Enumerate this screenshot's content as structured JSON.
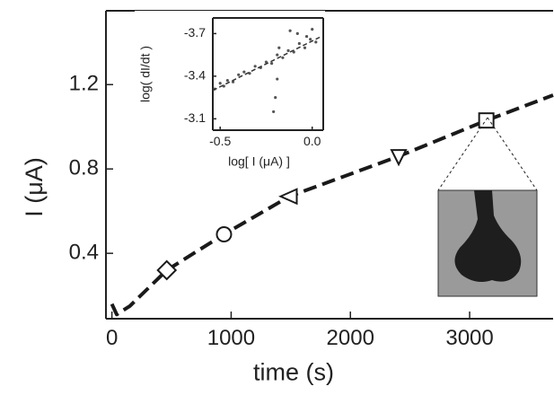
{
  "chart_data": [
    {
      "type": "line",
      "xlabel": "time (s)",
      "ylabel": "I (μA)",
      "xlim": [
        -50,
        3700
      ],
      "ylim": [
        0.09,
        1.55
      ],
      "xticks": [
        0,
        1000,
        2000,
        3000
      ],
      "yticks": [
        0.4,
        0.8,
        1.2
      ],
      "series": [
        {
          "color": "#1a1a1a",
          "line_style": "dashed",
          "x": [
            0,
            40,
            150,
            460,
            940,
            1490,
            2405,
            3140,
            3700
          ],
          "values": [
            0.16,
            0.11,
            0.15,
            0.32,
            0.49,
            0.67,
            0.86,
            1.03,
            1.15
          ]
        },
        {
          "color": "#1a1a1a",
          "markers": [
            "diamond",
            "circle",
            "triangle-left",
            "triangle-down",
            "square"
          ],
          "x": [
            460,
            940,
            1490,
            2405,
            3140
          ],
          "values": [
            0.32,
            0.49,
            0.67,
            0.86,
            1.03
          ]
        }
      ]
    },
    {
      "type": "scatter",
      "xlabel": "log[ I (μA) ]",
      "ylabel": "log( dI/dt )",
      "xlim": [
        -0.54,
        0.06
      ],
      "ylim": [
        -3.02,
        -3.81
      ],
      "xticks": [
        -0.5,
        {
          "value": 0,
          "label": "0.0"
        }
      ],
      "yticks": [
        -3.1,
        -3.4,
        -3.7
      ],
      "series": [
        {
          "color": "#555555",
          "mode": "points",
          "x": [
            -0.53,
            -0.5,
            -0.48,
            -0.46,
            -0.43,
            -0.4,
            -0.37,
            -0.34,
            -0.31,
            -0.28,
            -0.25,
            -0.22,
            -0.19,
            -0.16,
            -0.13,
            -0.1,
            -0.07,
            -0.04,
            -0.01,
            0.02,
            -0.21,
            -0.2,
            -0.19,
            -0.18,
            -0.12,
            -0.08,
            -0.03,
            0.0
          ],
          "values": [
            -3.31,
            -3.35,
            -3.33,
            -3.37,
            -3.36,
            -3.41,
            -3.43,
            -3.42,
            -3.47,
            -3.46,
            -3.5,
            -3.49,
            -3.55,
            -3.53,
            -3.58,
            -3.57,
            -3.63,
            -3.6,
            -3.66,
            -3.64,
            -3.15,
            -3.25,
            -3.38,
            -3.6,
            -3.72,
            -3.7,
            -3.68,
            -3.73
          ]
        },
        {
          "color": "#333333",
          "mode": "dashed-line",
          "x": [
            -0.54,
            0.05
          ],
          "values": [
            -3.3,
            -3.68
          ]
        }
      ]
    }
  ]
}
